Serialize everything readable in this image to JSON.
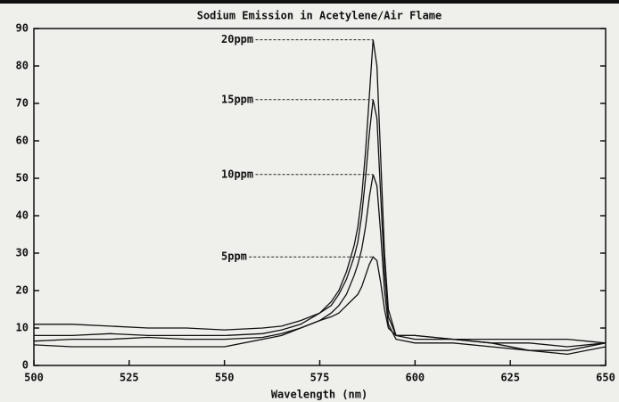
{
  "chart_data": {
    "type": "line",
    "title": "Sodium Emission in Acetylene/Air Flame",
    "xlabel": "Wavelength (nm)",
    "x": [
      500,
      510,
      520,
      530,
      540,
      550,
      560,
      565,
      570,
      575,
      578,
      580,
      582,
      584,
      585,
      586,
      587,
      588,
      589,
      590,
      591,
      592,
      593,
      595,
      600,
      610,
      620,
      630,
      640,
      650
    ],
    "series": [
      {
        "name": "20ppm",
        "color": "#111111",
        "values": [
          8,
          8,
          8.5,
          8,
          8,
          8,
          8.5,
          9.5,
          11,
          14,
          17,
          20,
          25,
          32,
          37,
          45,
          57,
          72,
          87,
          80,
          55,
          30,
          15,
          8,
          7,
          7,
          6,
          6,
          5,
          6
        ]
      },
      {
        "name": "15ppm",
        "color": "#111111",
        "values": [
          11,
          11,
          10.5,
          10,
          10,
          9.5,
          10,
          10.5,
          12,
          14,
          16,
          19,
          23,
          29,
          33,
          40,
          50,
          62,
          71,
          66,
          45,
          25,
          13,
          8,
          8,
          7,
          7,
          7,
          7,
          6
        ]
      },
      {
        "name": "10ppm",
        "color": "#111111",
        "values": [
          6.5,
          7,
          7,
          7.5,
          7,
          7,
          7.5,
          8.5,
          10,
          12,
          14,
          16,
          19,
          24,
          27,
          31,
          37,
          45,
          51,
          48,
          35,
          20,
          11,
          7,
          6,
          6,
          5,
          4,
          4,
          6
        ]
      },
      {
        "name": "5ppm",
        "color": "#111111",
        "values": [
          5.5,
          5,
          5,
          5,
          5,
          5,
          7,
          8,
          10,
          12,
          13,
          14,
          16,
          18,
          19,
          21,
          24,
          27,
          29,
          28,
          22,
          15,
          10,
          8,
          8,
          7,
          6,
          4,
          3,
          5
        ]
      }
    ],
    "xlim": [
      500,
      650
    ],
    "xticks": [
      500,
      525,
      550,
      575,
      600,
      625,
      650
    ],
    "ylim": [
      0,
      90
    ],
    "yticks": [
      0,
      10,
      20,
      30,
      40,
      50,
      60,
      70,
      80,
      90
    ],
    "grid": false
  }
}
